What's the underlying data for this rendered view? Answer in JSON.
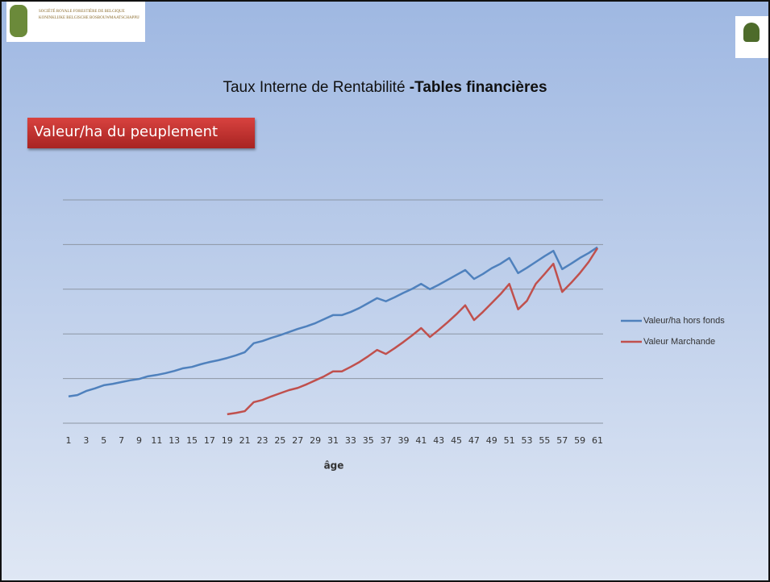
{
  "header": {
    "org_lines": [
      "Société Royale Forestière de Belgique",
      "Koninklijke Belgische Bosbouwmaatschappij"
    ],
    "title_plain": "Taux Interne de Rentabilité ",
    "title_bold": "-Tables financières",
    "section": "Valeur/ha du peuplement"
  },
  "chart_data": {
    "type": "line",
    "xlabel": "âge",
    "categories": [
      "1",
      null,
      "3",
      null,
      "5",
      null,
      "7",
      null,
      "9",
      null,
      "11",
      null,
      "13",
      null,
      "15",
      null,
      "17",
      null,
      "19",
      null,
      "21",
      null,
      "23",
      null,
      "25",
      null,
      "27",
      null,
      "29",
      null,
      "31",
      null,
      "33",
      null,
      "35",
      null,
      "37",
      null,
      "39",
      null,
      "41",
      null,
      "43",
      null,
      "45",
      null,
      "47",
      null,
      "49",
      null,
      "51",
      null,
      "53",
      null,
      "55",
      null,
      "57",
      null,
      "59",
      null,
      "61"
    ],
    "ylim": [
      0,
      5
    ],
    "yticks": [
      0,
      1,
      2,
      3,
      4,
      5
    ],
    "grid": true,
    "legend": "right",
    "series": [
      {
        "name": "Valeur/ha hors fonds",
        "color": "#4f81bd",
        "values": [
          0.6,
          0.63,
          0.72,
          0.78,
          0.85,
          0.88,
          0.92,
          0.96,
          0.99,
          1.05,
          1.08,
          1.12,
          1.17,
          1.23,
          1.26,
          1.32,
          1.37,
          1.41,
          1.46,
          1.52,
          1.59,
          1.79,
          1.84,
          1.91,
          1.97,
          2.04,
          2.11,
          2.17,
          2.24,
          2.33,
          2.42,
          2.42,
          2.49,
          2.58,
          2.69,
          2.8,
          2.73,
          2.82,
          2.92,
          3.01,
          3.12,
          3.0,
          3.1,
          3.21,
          3.32,
          3.43,
          3.23,
          3.34,
          3.47,
          3.57,
          3.7,
          3.36,
          3.48,
          3.61,
          3.74,
          3.86,
          3.45,
          3.57,
          3.7,
          3.81,
          3.94
        ]
      },
      {
        "name": "Valeur Marchande",
        "color": "#c0504d",
        "values": [
          null,
          null,
          null,
          null,
          null,
          null,
          null,
          null,
          null,
          null,
          null,
          null,
          null,
          null,
          null,
          null,
          null,
          null,
          0.2,
          0.23,
          0.27,
          0.47,
          0.52,
          0.6,
          0.67,
          0.74,
          0.79,
          0.87,
          0.96,
          1.05,
          1.16,
          1.16,
          1.26,
          1.37,
          1.5,
          1.64,
          1.55,
          1.68,
          1.82,
          1.97,
          2.13,
          1.93,
          2.09,
          2.26,
          2.44,
          2.64,
          2.31,
          2.49,
          2.69,
          2.89,
          3.12,
          2.55,
          2.74,
          3.12,
          3.34,
          3.57,
          2.94,
          3.14,
          3.36,
          3.61,
          3.92
        ]
      }
    ]
  }
}
